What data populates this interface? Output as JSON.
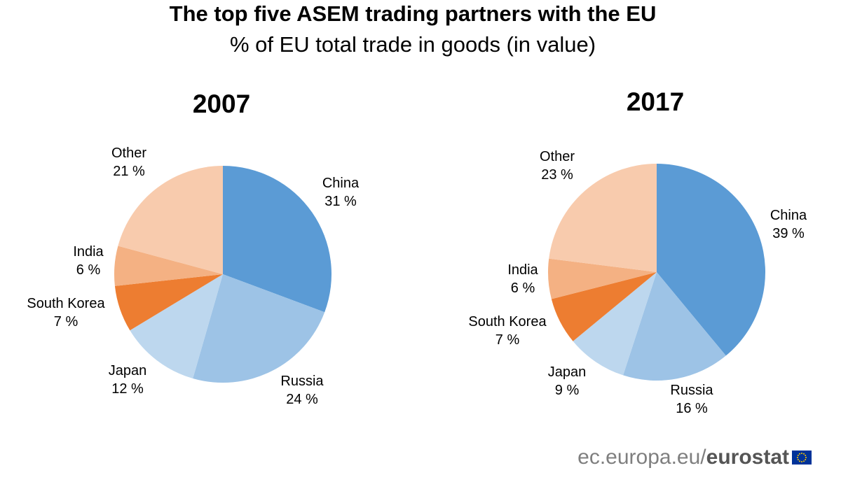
{
  "header": {
    "title": "The top five ASEM trading partners with the EU",
    "subtitle": "% of EU total trade in goods (in value)"
  },
  "footer": {
    "site": "ec.europa.eu/",
    "brand": "eurostat"
  },
  "colors": {
    "China": "#5b9bd5",
    "Russia": "#9dc3e6",
    "Japan": "#bdd7ee",
    "South Korea": "#ed7d31",
    "India": "#f4b183",
    "Other": "#f8cbad"
  },
  "chart_data": [
    {
      "type": "pie",
      "title": "2007",
      "slices": [
        {
          "name": "China",
          "value": 31,
          "label": "31 %"
        },
        {
          "name": "Russia",
          "value": 24,
          "label": "24 %"
        },
        {
          "name": "Japan",
          "value": 12,
          "label": "12 %"
        },
        {
          "name": "South Korea",
          "value": 7,
          "label": "7 %"
        },
        {
          "name": "India",
          "value": 6,
          "label": "6 %"
        },
        {
          "name": "Other",
          "value": 21,
          "label": "21 %"
        }
      ]
    },
    {
      "type": "pie",
      "title": "2017",
      "slices": [
        {
          "name": "China",
          "value": 39,
          "label": "39 %"
        },
        {
          "name": "Russia",
          "value": 16,
          "label": "16 %"
        },
        {
          "name": "Japan",
          "value": 9,
          "label": "9 %"
        },
        {
          "name": "South Korea",
          "value": 7,
          "label": "7 %"
        },
        {
          "name": "India",
          "value": 6,
          "label": "6 %"
        },
        {
          "name": "Other",
          "value": 23,
          "label": "23 %"
        }
      ]
    }
  ]
}
